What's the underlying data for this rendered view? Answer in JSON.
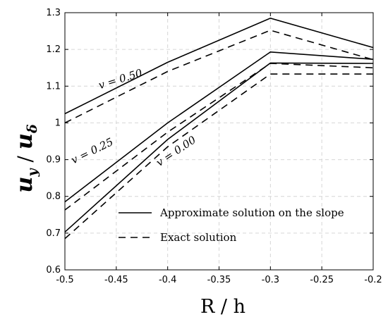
{
  "chart_data": {
    "type": "line",
    "xlabel": "R / h",
    "ylabel_main": "u",
    "ylabel_main_sub": "y",
    "ylabel_slash": " / ",
    "ylabel_den": "u",
    "ylabel_den_sub": "δ",
    "xlim": [
      -0.5,
      -0.2
    ],
    "ylim": [
      0.6,
      1.3
    ],
    "xticks": [
      -0.5,
      -0.45,
      -0.4,
      -0.35,
      -0.3,
      -0.25,
      -0.2
    ],
    "xtick_labels": [
      "-0.5",
      "-0.45",
      "-0.4",
      "-0.35",
      "-0.3",
      "-0.25",
      "-0.2"
    ],
    "yticks": [
      0.6,
      0.7,
      0.8,
      0.9,
      1.0,
      1.1,
      1.2,
      1.3
    ],
    "ytick_labels": [
      "0.6",
      "0.7",
      "0.8",
      "0.9",
      "1",
      "1.1",
      "1.2",
      "1.3"
    ],
    "grid": true,
    "legend_position": "bottom-right",
    "legend": [
      {
        "label": "Approximate solution on the slope",
        "style": "solid"
      },
      {
        "label": "Exact solution",
        "style": "dashed"
      }
    ],
    "annotations": [
      {
        "text": "v = 0.50",
        "x": -0.445,
        "y": 1.11
      },
      {
        "text": "v = 0.25",
        "x": -0.472,
        "y": 0.915
      },
      {
        "text": "v = 0.00",
        "x": -0.39,
        "y": 0.915
      }
    ],
    "series": [
      {
        "style": "solid",
        "x": [
          -0.5,
          -0.4,
          -0.3,
          -0.2
        ],
        "y": [
          1.025,
          1.165,
          1.285,
          1.205
        ]
      },
      {
        "style": "dashed",
        "x": [
          -0.5,
          -0.4,
          -0.3,
          -0.2
        ],
        "y": [
          1.0,
          1.14,
          1.252,
          1.172
        ]
      },
      {
        "style": "solid",
        "x": [
          -0.5,
          -0.4,
          -0.3,
          -0.2
        ],
        "y": [
          0.785,
          1.0,
          1.193,
          1.173
        ]
      },
      {
        "style": "dashed",
        "x": [
          -0.5,
          -0.4,
          -0.3,
          -0.2
        ],
        "y": [
          0.763,
          0.975,
          1.162,
          1.15
        ]
      },
      {
        "style": "solid",
        "x": [
          -0.5,
          -0.4,
          -0.3,
          -0.2
        ],
        "y": [
          0.703,
          0.955,
          1.163,
          1.162
        ]
      },
      {
        "style": "dashed",
        "x": [
          -0.5,
          -0.4,
          -0.3,
          -0.2
        ],
        "y": [
          0.685,
          0.935,
          1.133,
          1.133
        ]
      }
    ]
  }
}
